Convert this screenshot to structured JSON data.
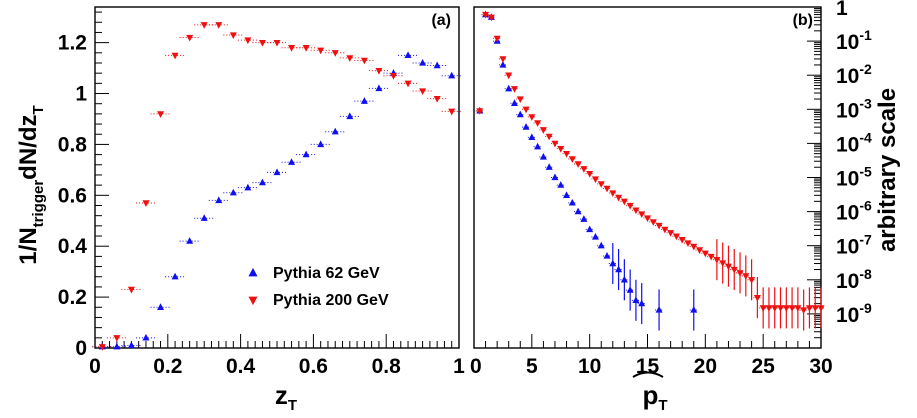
{
  "colors": {
    "series1": "#1010ee",
    "series2": "#ee1010",
    "axes": "#000000"
  },
  "chart_data": [
    {
      "type": "scatter",
      "panel_label": "(a)",
      "xlabel": "z",
      "xlabel_sub": "T",
      "ylabel_parts": [
        "1/N",
        "trigger",
        "dN/dz",
        "T"
      ],
      "xlim": [
        0,
        1
      ],
      "ylim": [
        0,
        1.34
      ],
      "xticks": [
        0,
        0.2,
        0.4,
        0.6,
        0.8,
        1
      ],
      "xtick_labels": [
        "0",
        "0.2",
        "0.4",
        "0.6",
        "0.8",
        "1"
      ],
      "yticks": [
        0,
        0.2,
        0.4,
        0.6,
        0.8,
        1,
        1.2
      ],
      "ytick_labels": [
        "0",
        "0.2",
        "0.4",
        "0.6",
        "0.8",
        "1",
        "1.2"
      ],
      "legend_position": "bottom-right",
      "series": [
        {
          "name": "Pythia 62 GeV",
          "marker": "triangle-up",
          "x": [
            0.02,
            0.06,
            0.1,
            0.14,
            0.18,
            0.22,
            0.26,
            0.3,
            0.34,
            0.38,
            0.42,
            0.46,
            0.5,
            0.54,
            0.58,
            0.62,
            0.66,
            0.7,
            0.74,
            0.78,
            0.82,
            0.86,
            0.9,
            0.94,
            0.98
          ],
          "y": [
            0.005,
            0.005,
            0.01,
            0.04,
            0.16,
            0.28,
            0.42,
            0.51,
            0.58,
            0.61,
            0.63,
            0.65,
            0.69,
            0.73,
            0.76,
            0.8,
            0.85,
            0.91,
            0.97,
            1.02,
            1.08,
            1.15,
            1.12,
            1.11,
            1.07
          ]
        },
        {
          "name": "Pythia 200 GeV",
          "marker": "triangle-down",
          "x": [
            0.02,
            0.06,
            0.1,
            0.14,
            0.18,
            0.22,
            0.26,
            0.3,
            0.34,
            0.38,
            0.42,
            0.46,
            0.5,
            0.54,
            0.58,
            0.62,
            0.66,
            0.7,
            0.74,
            0.78,
            0.82,
            0.86,
            0.9,
            0.94,
            0.98
          ],
          "y": [
            0.005,
            0.04,
            0.23,
            0.57,
            0.92,
            1.15,
            1.22,
            1.27,
            1.27,
            1.23,
            1.21,
            1.2,
            1.2,
            1.18,
            1.18,
            1.17,
            1.16,
            1.14,
            1.13,
            1.09,
            1.07,
            1.04,
            1.01,
            0.98,
            0.93
          ]
        }
      ]
    },
    {
      "type": "scatter",
      "panel_label": "(b)",
      "xlabel": "p",
      "xlabel_sub": "T",
      "ylabel": "arbitrary scale",
      "xlim": [
        0,
        30
      ],
      "yscale": "log",
      "ylim": [
        1e-10,
        1
      ],
      "xticks": [
        0,
        5,
        10,
        15,
        20,
        25,
        30
      ],
      "xtick_labels": [
        "0",
        "5",
        "10",
        "15",
        "20",
        "25",
        "30"
      ],
      "yticks": [
        1,
        0.1,
        0.01,
        0.001,
        0.0001,
        1e-05,
        1e-06,
        1e-07,
        1e-08,
        1e-09
      ],
      "ytick_base_labels": [
        "1",
        "10",
        "10",
        "10",
        "10",
        "10",
        "10",
        "10",
        "10",
        "10"
      ],
      "ytick_exp_labels": [
        "",
        "-1",
        "-2",
        "-3",
        "-4",
        "-5",
        "-6",
        "-7",
        "-8",
        "-9"
      ],
      "series": [
        {
          "name": "Pythia 62 GeV",
          "marker": "triangle-up",
          "x": [
            0.5,
            1.0,
            1.5,
            2.0,
            2.5,
            3.0,
            3.5,
            4.0,
            4.5,
            5.0,
            5.5,
            6.0,
            6.5,
            7.0,
            7.5,
            8.0,
            8.5,
            9.0,
            9.5,
            10.0,
            10.5,
            11.0,
            11.5,
            12.0,
            12.5,
            13.0,
            13.5,
            14.0,
            14.5,
            16.0,
            19.0
          ],
          "y": [
            0.0009,
            0.6,
            0.5,
            0.1,
            0.02,
            0.004,
            0.0015,
            0.0007,
            0.0003,
            0.00015,
            8e-05,
            4e-05,
            2e-05,
            1e-05,
            6e-06,
            3e-06,
            1.8e-06,
            1e-06,
            6e-07,
            3e-07,
            1.8e-07,
            1e-07,
            5e-08,
            3e-08,
            2e-08,
            1e-08,
            5e-09,
            2.5e-09,
            2e-09,
            1.3e-09,
            1.3e-09
          ]
        },
        {
          "name": "Pythia 200 GeV",
          "marker": "triangle-down",
          "x": [
            0.5,
            1.0,
            1.5,
            2.0,
            2.5,
            3.0,
            3.5,
            4.0,
            4.5,
            5.0,
            5.5,
            6.0,
            6.5,
            7.0,
            7.5,
            8.0,
            8.5,
            9.0,
            9.5,
            10.0,
            10.5,
            11.0,
            11.5,
            12.0,
            12.5,
            13.0,
            13.5,
            14.0,
            14.5,
            15.0,
            15.5,
            16.0,
            16.5,
            17.0,
            17.5,
            18.0,
            18.5,
            19.0,
            19.5,
            20.0,
            20.5,
            21.0,
            21.5,
            22.0,
            22.5,
            23.0,
            23.5,
            24.0,
            24.5,
            25.0,
            25.5,
            26.0,
            26.5,
            27.0,
            27.5,
            28.0,
            28.5,
            29.0,
            29.5,
            30.0
          ],
          "y": [
            0.0009,
            0.6,
            0.5,
            0.12,
            0.03,
            0.01,
            0.004,
            0.002,
            0.001,
            0.0006,
            0.0004,
            0.00025,
            0.00016,
            0.0001,
            7e-05,
            5e-05,
            3.5e-05,
            2.5e-05,
            1.8e-05,
            1.3e-05,
            9e-06,
            6.5e-06,
            4.8e-06,
            3.5e-06,
            2.6e-06,
            2e-06,
            1.5e-06,
            1.1e-06,
            8.5e-07,
            6.5e-07,
            5e-07,
            3.9e-07,
            3e-07,
            2.4e-07,
            1.9e-07,
            1.5e-07,
            1.2e-07,
            9.5e-08,
            7.5e-08,
            6e-08,
            4.8e-08,
            3.9e-08,
            3.1e-08,
            2.5e-08,
            2e-08,
            1.6e-08,
            1.3e-08,
            1e-08,
            3e-09,
            1.5e-09,
            1.5e-09,
            1.5e-09,
            1.5e-09,
            1.5e-09,
            1.5e-09,
            1.5e-09,
            1.3e-09,
            1.5e-09,
            1.5e-09,
            1.5e-09
          ]
        }
      ]
    }
  ]
}
